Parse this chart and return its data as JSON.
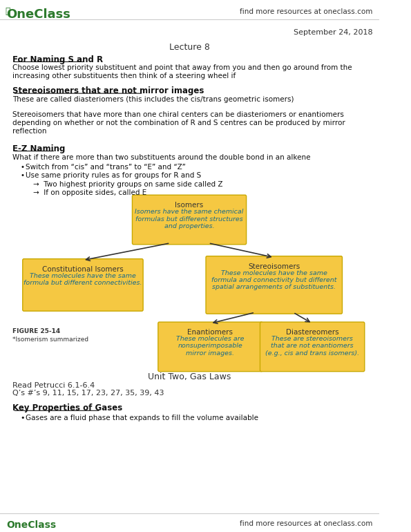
{
  "bg_color": "#ffffff",
  "oneclass_color": "#2d7a2d",
  "header_text": "find more resources at oneclass.com",
  "date_text": "September 24, 2018",
  "lecture_title": "Lecture 8",
  "sections": [
    {
      "heading": "For Naming S and R",
      "underline": true,
      "bold": true,
      "body": "Choose lowest priority substituent and point that away from you and then go around from the\nincreasing other substituents then think of a steering wheel if"
    },
    {
      "heading": "Stereoisomers that are not mirror images",
      "underline": true,
      "bold": true,
      "body": "These are called diasteriomers (this includes the cis/trans geometric isomers)"
    },
    {
      "heading": "",
      "underline": false,
      "bold": false,
      "body": "Stereoisomers that have more than one chiral centers can be diasteriomers or enantiomers\ndepending on whether or not the combination of R and S centres can be produced by mirror\nreflection"
    },
    {
      "heading": "E-Z Naming",
      "underline": true,
      "bold": true,
      "body": "What if there are more than two substituents around the double bond in an alkene"
    }
  ],
  "bullets": [
    "Switch from “cis” and “trans” to “E” and “Z”",
    "Use same priority rules as for groups for R and S"
  ],
  "sub_bullets": [
    "→  Two highest priority groups on same side called Z",
    "→  If on opposite sides, called E"
  ],
  "diagram": {
    "box_color": "#f5c842",
    "box_border": "#c8a800",
    "top_box": {
      "title": "Isomers",
      "body": "Isomers have the same chemical\nformulas but different structures\nand properties."
    },
    "mid_left_box": {
      "title": "Constitutional Isomers",
      "body": "These molecules have the same\nformula but different connectivities."
    },
    "mid_right_box": {
      "title": "Stereoisomers",
      "body": "These molecules have the same\nformula and connectivity but different\nspatial arrangements of substituents."
    },
    "bot_left_box": {
      "title": "Enantiomers",
      "body": "These molecules are\nnonsuperimposable\nmirror images."
    },
    "bot_right_box": {
      "title": "Diastereomers",
      "body": "These are stereoisomers\nthat are not enantiomers\n(e.g., cis and trans isomers)."
    },
    "figure_label": "FIGURE 25-14",
    "figure_caption": "*Isomerism summarized"
  },
  "unit_title": "Unit Two, Gas Laws",
  "read_text": "Read Petrucci 6.1-6.4",
  "qs_text": "Q’s #’s 9, 11, 15, 17, 23, 27, 35, 39, 43",
  "key_heading": "Key Properties of Gases",
  "key_body": "Gases are a fluid phase that expands to fill the volume available",
  "footer_text": "find more resources at oneclass.com"
}
